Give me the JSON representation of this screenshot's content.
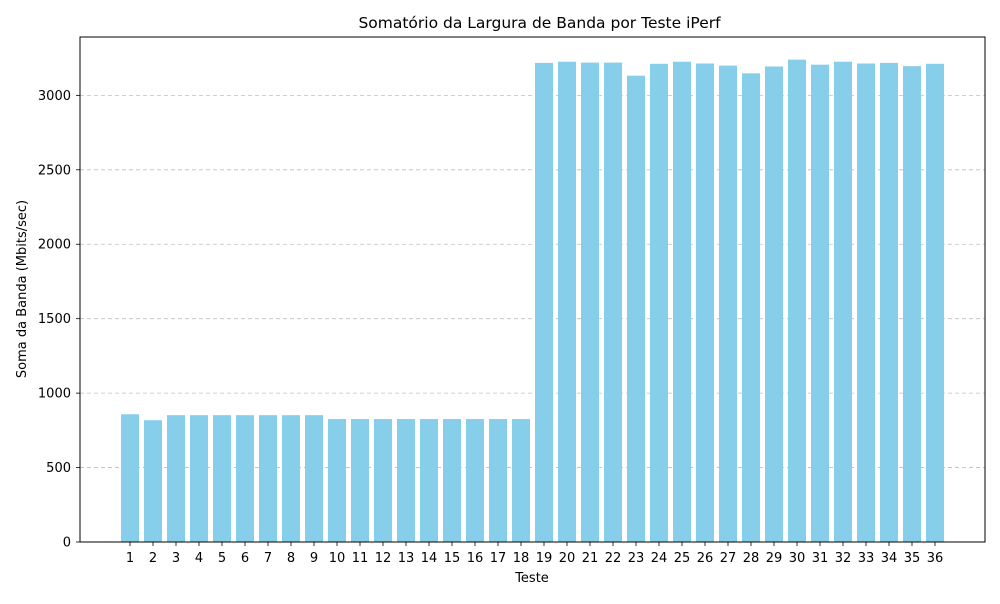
{
  "chart_data": {
    "type": "bar",
    "title": "Somatório da Largura de Banda por Teste iPerf",
    "xlabel": "Teste",
    "ylabel": "Soma da Banda (Mbits/sec)",
    "categories": [
      "1",
      "2",
      "3",
      "4",
      "5",
      "6",
      "7",
      "8",
      "9",
      "10",
      "11",
      "12",
      "13",
      "14",
      "15",
      "16",
      "17",
      "18",
      "19",
      "20",
      "21",
      "22",
      "23",
      "24",
      "25",
      "26",
      "27",
      "28",
      "29",
      "30",
      "31",
      "32",
      "33",
      "34",
      "35",
      "36"
    ],
    "values": [
      858,
      818,
      852,
      852,
      852,
      852,
      852,
      852,
      852,
      826,
      826,
      826,
      826,
      826,
      826,
      826,
      826,
      826,
      3218,
      3226,
      3220,
      3220,
      3132,
      3212,
      3226,
      3214,
      3200,
      3148,
      3194,
      3240,
      3206,
      3226,
      3214,
      3218,
      3196,
      3212
    ],
    "ylim": [
      0,
      3392
    ],
    "yticks": [
      0,
      500,
      1000,
      1500,
      2000,
      2500,
      3000
    ],
    "grid": "y-dashed",
    "bar_color": "#87ceeb"
  }
}
